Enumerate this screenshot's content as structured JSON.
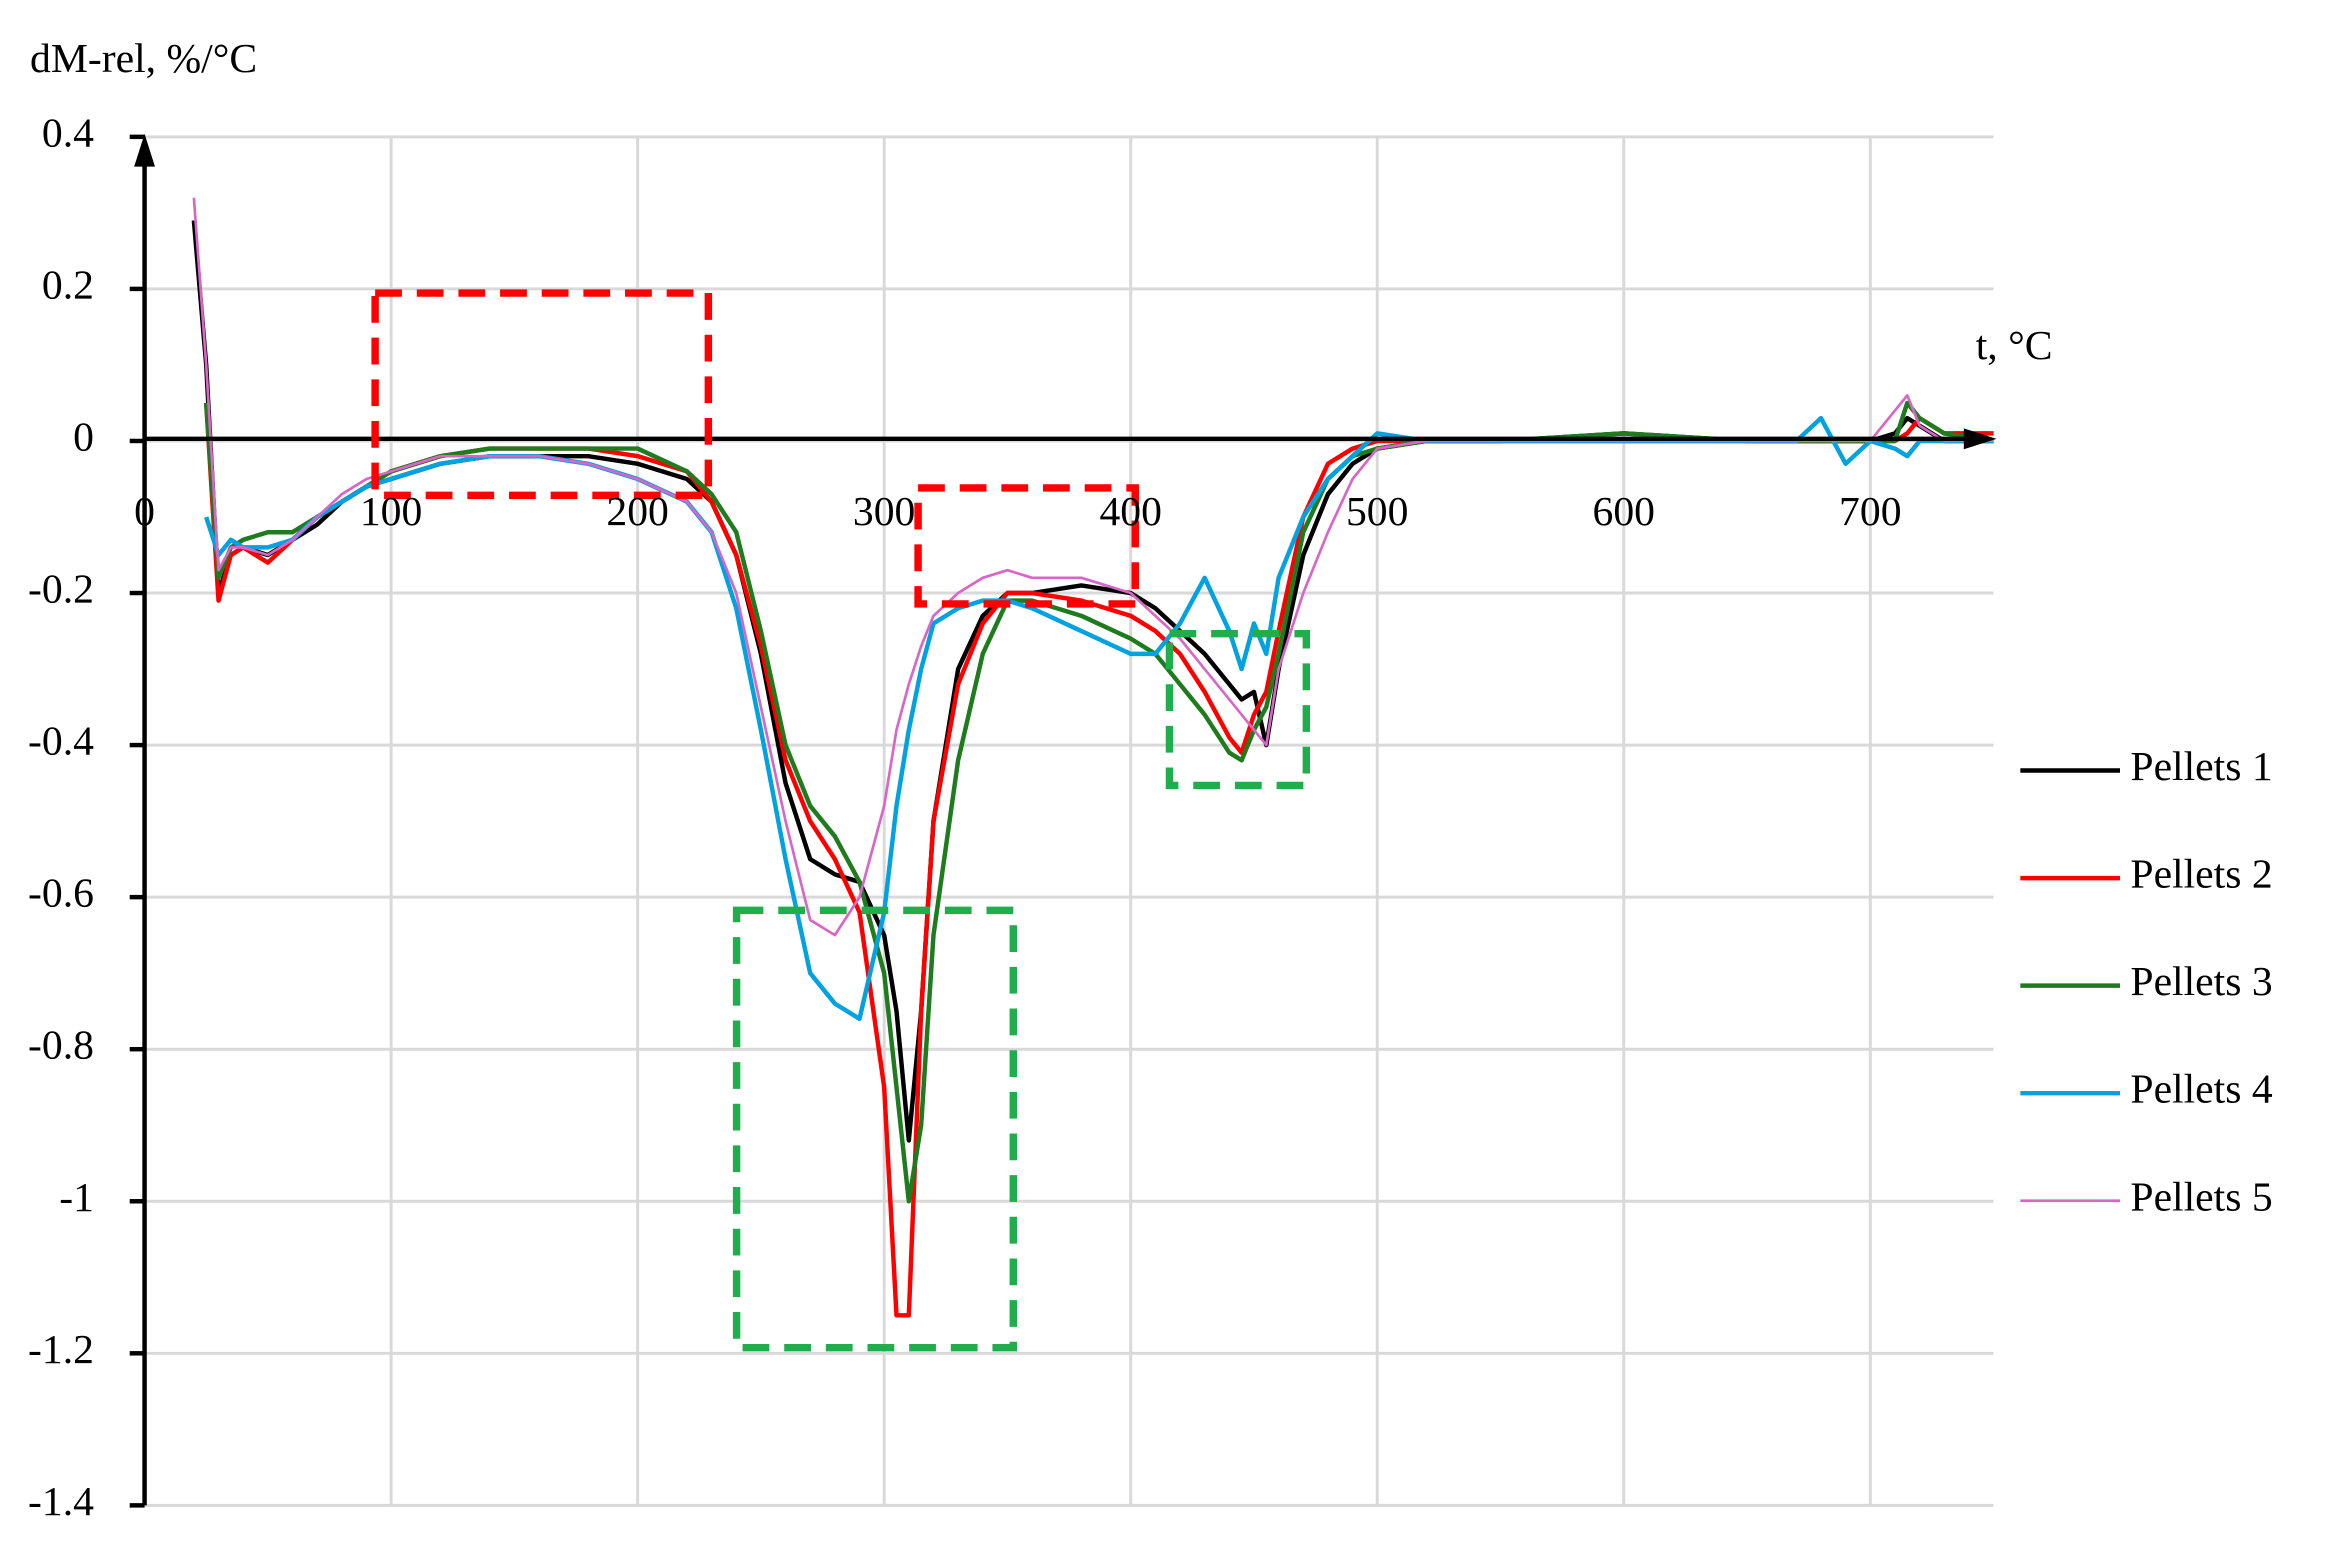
{
  "chart_data": {
    "type": "line",
    "y_label": "dM-rel, %/°C",
    "x_label": "t, °C",
    "xlim": [
      0,
      750
    ],
    "xticks": [
      0,
      100,
      200,
      300,
      400,
      500,
      600,
      700
    ],
    "ylim": [
      -1.4,
      0.4
    ],
    "yticks": [
      -1.4,
      -1.2,
      -1,
      -0.8,
      -0.6,
      -0.4,
      -0.2,
      0,
      0.2,
      0.4
    ],
    "grid": true,
    "legend": "right",
    "x": [
      20,
      25,
      30,
      35,
      40,
      50,
      60,
      70,
      80,
      90,
      100,
      120,
      140,
      160,
      180,
      200,
      220,
      230,
      240,
      250,
      260,
      270,
      280,
      290,
      300,
      305,
      310,
      315,
      320,
      330,
      340,
      350,
      360,
      380,
      400,
      410,
      420,
      430,
      440,
      445,
      450,
      455,
      460,
      470,
      480,
      490,
      500,
      520,
      550,
      600,
      650,
      670,
      680,
      690,
      700,
      710,
      715,
      720,
      730,
      750
    ],
    "series": [
      {
        "name": "Pellets 1",
        "color": "#000000",
        "values": [
          0.29,
          0.1,
          -0.2,
          -0.15,
          -0.14,
          -0.15,
          -0.13,
          -0.11,
          -0.08,
          -0.06,
          -0.05,
          -0.03,
          -0.02,
          -0.02,
          -0.02,
          -0.03,
          -0.05,
          -0.08,
          -0.15,
          -0.28,
          -0.45,
          -0.55,
          -0.57,
          -0.58,
          -0.65,
          -0.75,
          -0.92,
          -0.75,
          -0.5,
          -0.3,
          -0.23,
          -0.2,
          -0.2,
          -0.19,
          -0.2,
          -0.22,
          -0.25,
          -0.28,
          -0.32,
          -0.34,
          -0.33,
          -0.4,
          -0.3,
          -0.15,
          -0.07,
          -0.03,
          -0.01,
          0,
          0,
          0.01,
          0,
          0,
          0,
          0,
          0,
          0.01,
          0.03,
          0.02,
          0,
          0
        ]
      },
      {
        "name": "Pellets 2",
        "color": "#ff0000",
        "values": [
          null,
          0.05,
          -0.21,
          -0.15,
          -0.14,
          -0.16,
          -0.13,
          -0.1,
          -0.08,
          -0.06,
          -0.04,
          -0.02,
          -0.01,
          -0.01,
          -0.01,
          -0.02,
          -0.04,
          -0.08,
          -0.15,
          -0.27,
          -0.42,
          -0.5,
          -0.55,
          -0.62,
          -0.85,
          -1.15,
          -1.15,
          -0.75,
          -0.5,
          -0.32,
          -0.24,
          -0.2,
          -0.2,
          -0.21,
          -0.23,
          -0.25,
          -0.28,
          -0.33,
          -0.39,
          -0.41,
          -0.36,
          -0.33,
          -0.25,
          -0.1,
          -0.03,
          -0.01,
          0,
          0,
          0,
          0,
          0,
          0,
          0,
          0,
          0,
          0,
          0.01,
          0.03,
          0.01,
          0.01
        ]
      },
      {
        "name": "Pellets 3",
        "color": "#1e7b1e",
        "values": [
          null,
          0.05,
          -0.18,
          -0.14,
          -0.13,
          -0.12,
          -0.12,
          -0.1,
          -0.08,
          -0.06,
          -0.04,
          -0.02,
          -0.01,
          -0.01,
          -0.01,
          -0.01,
          -0.04,
          -0.07,
          -0.12,
          -0.25,
          -0.4,
          -0.48,
          -0.52,
          -0.58,
          -0.7,
          -0.85,
          -1.0,
          -0.9,
          -0.65,
          -0.42,
          -0.28,
          -0.21,
          -0.21,
          -0.23,
          -0.26,
          -0.28,
          -0.32,
          -0.36,
          -0.41,
          -0.42,
          -0.38,
          -0.35,
          -0.28,
          -0.12,
          -0.05,
          -0.02,
          -0.01,
          0,
          0,
          0.01,
          0,
          0,
          0,
          0,
          0,
          0,
          0.05,
          0.03,
          0.01,
          0
        ]
      },
      {
        "name": "Pellets 4",
        "color": "#00a2e0",
        "values": [
          null,
          -0.1,
          -0.15,
          -0.13,
          -0.14,
          -0.14,
          -0.13,
          -0.1,
          -0.08,
          -0.06,
          -0.05,
          -0.03,
          -0.02,
          -0.02,
          -0.03,
          -0.05,
          -0.08,
          -0.12,
          -0.22,
          -0.38,
          -0.55,
          -0.7,
          -0.74,
          -0.76,
          -0.62,
          -0.48,
          -0.38,
          -0.3,
          -0.24,
          -0.22,
          -0.21,
          -0.21,
          -0.22,
          -0.25,
          -0.28,
          -0.28,
          -0.24,
          -0.18,
          -0.25,
          -0.3,
          -0.24,
          -0.28,
          -0.18,
          -0.1,
          -0.05,
          -0.02,
          0.01,
          0,
          0,
          0,
          0,
          0,
          0.03,
          -0.03,
          0,
          -0.01,
          -0.02,
          0,
          0,
          0
        ]
      },
      {
        "name": "Pellets 5",
        "color": "#d966c7",
        "values": [
          0.32,
          0.1,
          -0.17,
          -0.14,
          -0.14,
          -0.15,
          -0.13,
          -0.1,
          -0.07,
          -0.05,
          -0.04,
          -0.02,
          -0.02,
          -0.02,
          -0.03,
          -0.05,
          -0.08,
          -0.12,
          -0.2,
          -0.35,
          -0.5,
          -0.63,
          -0.65,
          -0.6,
          -0.48,
          -0.38,
          -0.32,
          -0.27,
          -0.23,
          -0.2,
          -0.18,
          -0.17,
          -0.18,
          -0.18,
          -0.2,
          -0.23,
          -0.26,
          -0.3,
          -0.34,
          -0.36,
          -0.38,
          -0.4,
          -0.3,
          -0.2,
          -0.12,
          -0.05,
          -0.01,
          0,
          0,
          0,
          0,
          0,
          0,
          0,
          0,
          0.04,
          0.06,
          0.02,
          0,
          0
        ]
      }
    ]
  }
}
